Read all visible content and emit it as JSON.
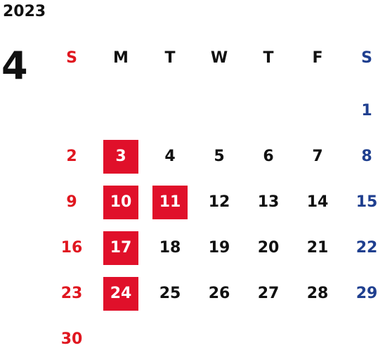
{
  "calendar": {
    "year": "2023",
    "month": "4",
    "weekdays": [
      "S",
      "M",
      "T",
      "W",
      "T",
      "F",
      "S"
    ],
    "colors": {
      "sunday": "#e0161f",
      "saturday": "#1f3f8f",
      "weekday": "#111111",
      "highlight_bg": "#e0102a",
      "highlight_text": "#ffffff"
    },
    "weeks": [
      [
        "",
        "",
        "",
        "",
        "",
        "",
        "1"
      ],
      [
        "2",
        "3",
        "4",
        "5",
        "6",
        "7",
        "8"
      ],
      [
        "9",
        "10",
        "11",
        "12",
        "13",
        "14",
        "15"
      ],
      [
        "16",
        "17",
        "18",
        "19",
        "20",
        "21",
        "22"
      ],
      [
        "23",
        "24",
        "25",
        "26",
        "27",
        "28",
        "29"
      ],
      [
        "30",
        "",
        "",
        "",
        "",
        "",
        ""
      ]
    ],
    "highlighted_days": [
      "3",
      "10",
      "11",
      "17",
      "24"
    ]
  }
}
